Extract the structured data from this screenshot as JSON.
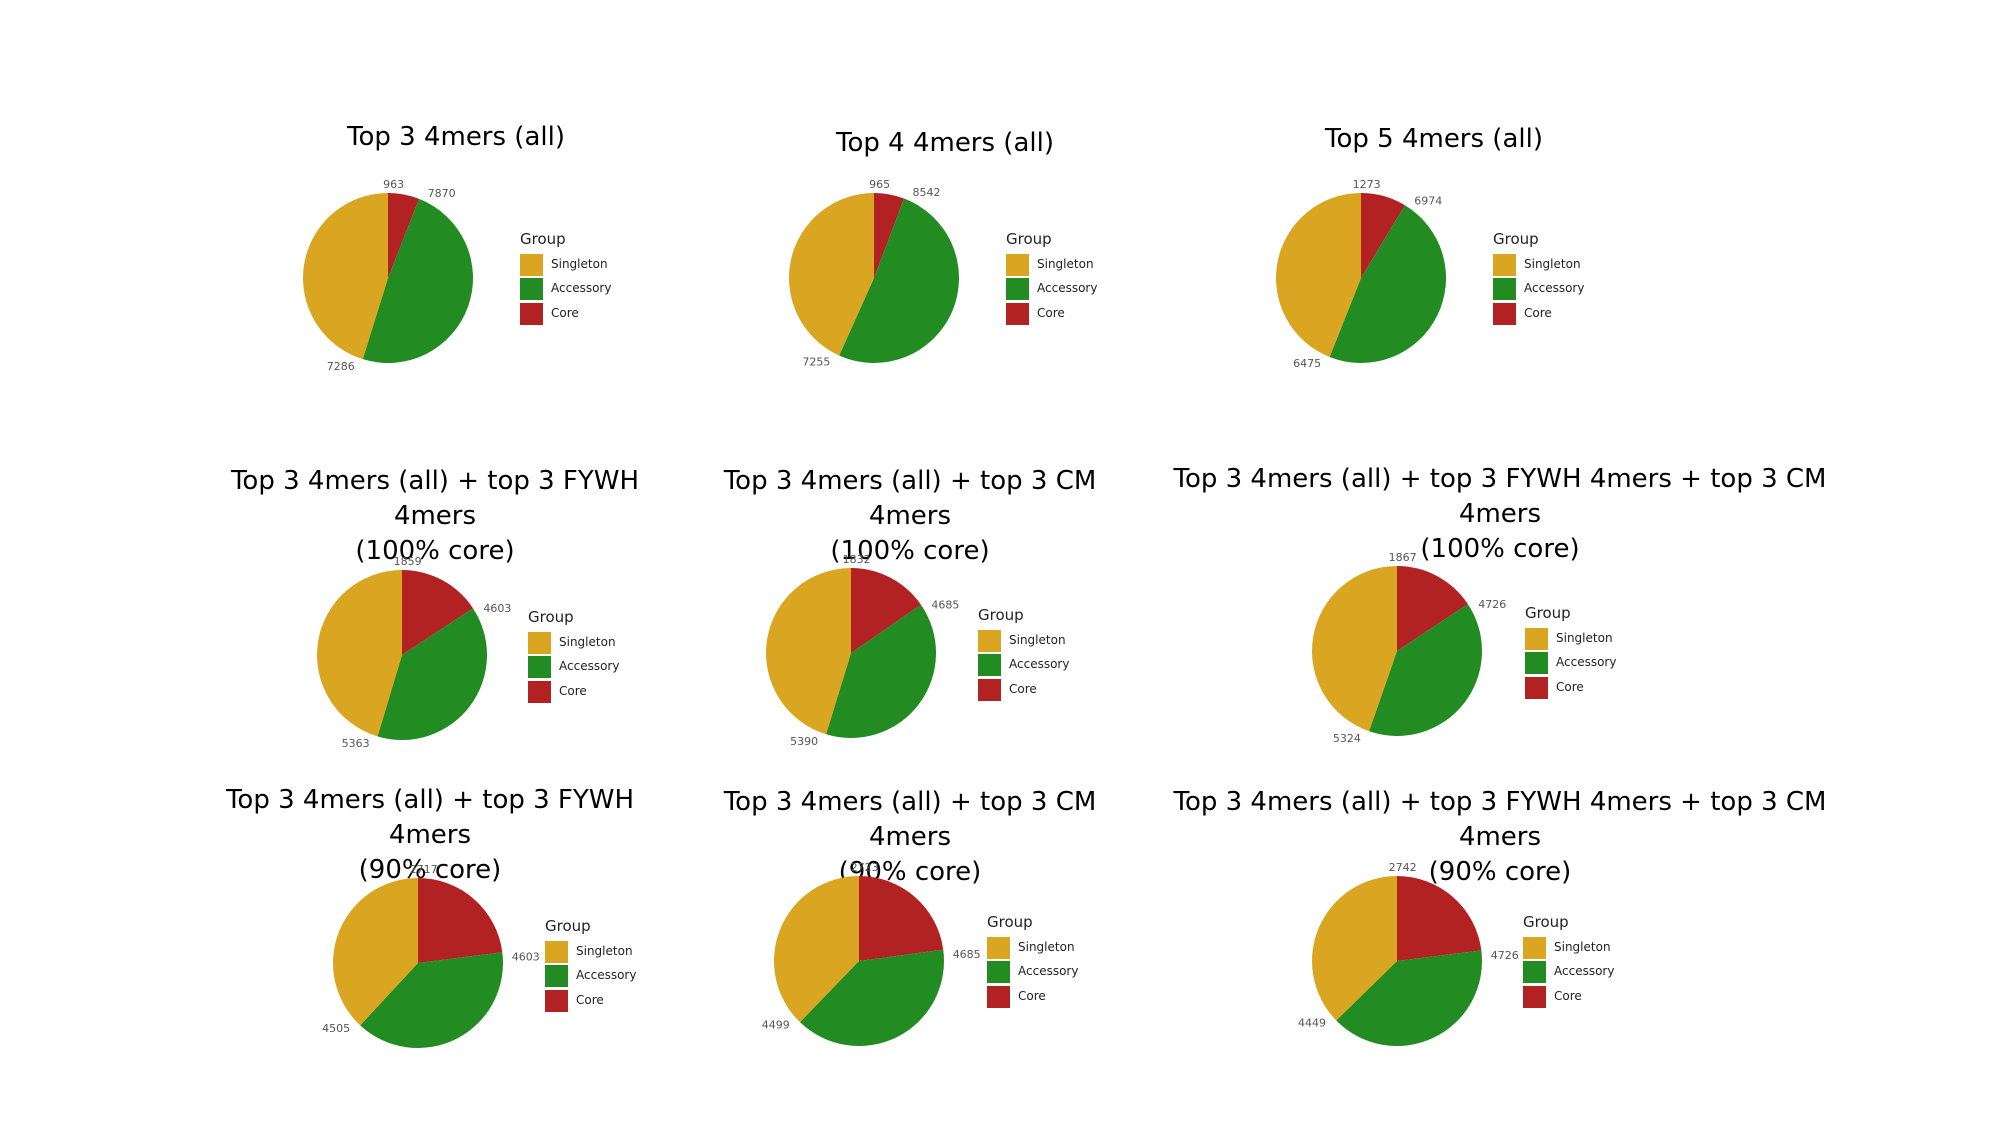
{
  "colors": {
    "Singleton": "#DAA520",
    "Accessory": "#228B22",
    "Core": "#B22222"
  },
  "legend": {
    "title": "Group",
    "items": [
      "Singleton",
      "Accessory",
      "Core"
    ]
  },
  "chart_data": [
    {
      "type": "pie",
      "title": "Top 3  4mers (all)",
      "categories": [
        "Core",
        "Accessory",
        "Singleton"
      ],
      "values": [
        963,
        7870,
        7286
      ],
      "labels": [
        "963",
        "7870",
        "7286"
      ]
    },
    {
      "type": "pie",
      "title": "Top 4  4mers (all)",
      "categories": [
        "Core",
        "Accessory",
        "Singleton"
      ],
      "values": [
        965,
        8542,
        7255
      ],
      "labels": [
        "965",
        "8542",
        "7255"
      ]
    },
    {
      "type": "pie",
      "title": "Top 5  4mers (all)",
      "categories": [
        "Core",
        "Accessory",
        "Singleton"
      ],
      "values": [
        1273,
        6974,
        6475
      ],
      "labels": [
        "1273",
        "6974",
        "6475"
      ]
    },
    {
      "type": "pie",
      "title": "Top 3 4mers (all) + top 3 FYWH 4mers\n(100% core)",
      "categories": [
        "Core",
        "Accessory",
        "Singleton"
      ],
      "values": [
        1859,
        4603,
        5363
      ],
      "labels": [
        "1859",
        "4603",
        "5363"
      ]
    },
    {
      "type": "pie",
      "title": "Top 3 4mers (all) + top 3 CM 4mers\n(100% core)",
      "categories": [
        "Core",
        "Accessory",
        "Singleton"
      ],
      "values": [
        1832,
        4685,
        5390
      ],
      "labels": [
        "1832",
        "4685",
        "5390"
      ]
    },
    {
      "type": "pie",
      "title": "Top 3 4mers (all) + top 3 FYWH 4mers + top 3 CM 4mers\n(100% core)",
      "categories": [
        "Core",
        "Accessory",
        "Singleton"
      ],
      "values": [
        1867,
        4726,
        5324
      ],
      "labels": [
        "1867",
        "4726",
        "5324"
      ]
    },
    {
      "type": "pie",
      "title": "Top 3 4mers (all) + top 3 FYWH 4mers\n(90% core)",
      "categories": [
        "Core",
        "Accessory",
        "Singleton"
      ],
      "values": [
        2717,
        4603,
        4505
      ],
      "labels": [
        "2717",
        "4603",
        "4505"
      ]
    },
    {
      "type": "pie",
      "title": "Top 3 4mers (all) + top 3 CM 4mers\n(90% core)",
      "categories": [
        "Core",
        "Accessory",
        "Singleton"
      ],
      "values": [
        2723,
        4685,
        4499
      ],
      "labels": [
        "2723",
        "4685",
        "4499"
      ]
    },
    {
      "type": "pie",
      "title": "Top 3 4mers (all) + top 3 FYWH 4mers + top 3 CM 4mers\n(90% core)",
      "categories": [
        "Core",
        "Accessory",
        "Singleton"
      ],
      "values": [
        2742,
        4726,
        4449
      ],
      "labels": [
        "2742",
        "4726",
        "4449"
      ]
    }
  ]
}
